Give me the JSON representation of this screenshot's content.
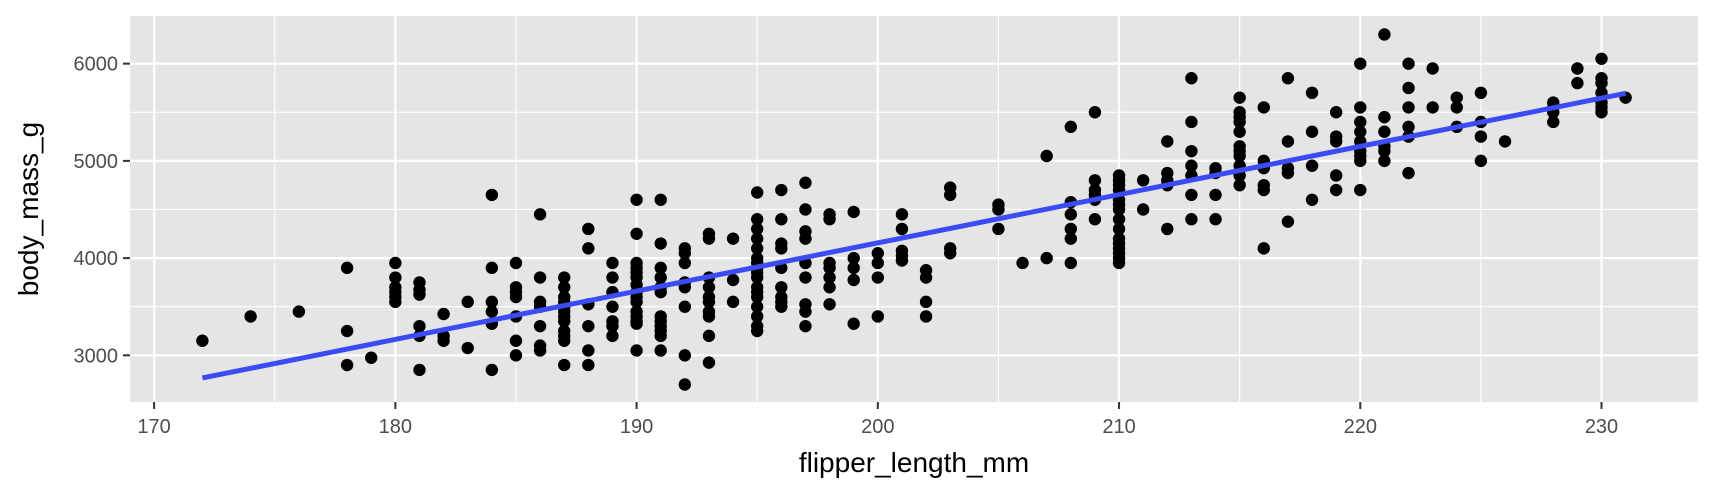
{
  "chart_data": {
    "type": "scatter",
    "title": "",
    "xlabel": "flipper_length_mm",
    "ylabel": "body_mass_g",
    "xlim": [
      169,
      234
    ],
    "ylim": [
      2520,
      6490
    ],
    "x_ticks": [
      170,
      180,
      190,
      200,
      210,
      220,
      230
    ],
    "y_ticks": [
      3000,
      4000,
      5000,
      6000
    ],
    "grid": true,
    "legend": "none",
    "colors": {
      "panel_background": "#e5e5e5",
      "grid_line": "#ffffff",
      "points": "#000000",
      "fit_line": "#3b4cf5",
      "tick_label": "#4d4d4d",
      "axis_title": "#000000"
    },
    "series": [
      {
        "type": "scatter",
        "points": [
          [
            172,
            3150
          ],
          [
            174,
            3400
          ],
          [
            176,
            3450
          ],
          [
            178,
            3250
          ],
          [
            178,
            3900
          ],
          [
            178,
            2900
          ],
          [
            179,
            2975
          ],
          [
            180,
            3950
          ],
          [
            180,
            3800
          ],
          [
            180,
            3700
          ],
          [
            180,
            3650
          ],
          [
            180,
            3600
          ],
          [
            180,
            3550
          ],
          [
            181,
            3750
          ],
          [
            181,
            3675
          ],
          [
            181,
            3625
          ],
          [
            181,
            3300
          ],
          [
            181,
            3200
          ],
          [
            181,
            2850
          ],
          [
            182,
            3425
          ],
          [
            182,
            3200
          ],
          [
            182,
            3150
          ],
          [
            183,
            3550
          ],
          [
            183,
            3075
          ],
          [
            184,
            4650
          ],
          [
            184,
            3900
          ],
          [
            184,
            3550
          ],
          [
            184,
            3450
          ],
          [
            184,
            3325
          ],
          [
            184,
            2850
          ],
          [
            185,
            3950
          ],
          [
            185,
            3700
          ],
          [
            185,
            3650
          ],
          [
            185,
            3600
          ],
          [
            185,
            3400
          ],
          [
            185,
            3150
          ],
          [
            185,
            3000
          ],
          [
            186,
            4450
          ],
          [
            186,
            3800
          ],
          [
            186,
            3550
          ],
          [
            186,
            3500
          ],
          [
            186,
            3300
          ],
          [
            186,
            3100
          ],
          [
            186,
            3050
          ],
          [
            187,
            3800
          ],
          [
            187,
            3700
          ],
          [
            187,
            3600
          ],
          [
            187,
            3550
          ],
          [
            187,
            3500
          ],
          [
            187,
            3450
          ],
          [
            187,
            3400
          ],
          [
            187,
            3350
          ],
          [
            187,
            3250
          ],
          [
            187,
            3200
          ],
          [
            187,
            3150
          ],
          [
            187,
            2900
          ],
          [
            188,
            4300
          ],
          [
            188,
            4100
          ],
          [
            188,
            3525
          ],
          [
            188,
            3300
          ],
          [
            188,
            3050
          ],
          [
            188,
            2900
          ],
          [
            189,
            3950
          ],
          [
            189,
            3800
          ],
          [
            189,
            3650
          ],
          [
            189,
            3500
          ],
          [
            189,
            3350
          ],
          [
            189,
            3300
          ],
          [
            189,
            3200
          ],
          [
            190,
            4600
          ],
          [
            190,
            4250
          ],
          [
            190,
            3950
          ],
          [
            190,
            3900
          ],
          [
            190,
            3850
          ],
          [
            190,
            3800
          ],
          [
            190,
            3725
          ],
          [
            190,
            3650
          ],
          [
            190,
            3600
          ],
          [
            190,
            3550
          ],
          [
            190,
            3450
          ],
          [
            190,
            3400
          ],
          [
            190,
            3350
          ],
          [
            190,
            3325
          ],
          [
            190,
            3050
          ],
          [
            191,
            4600
          ],
          [
            191,
            4150
          ],
          [
            191,
            3900
          ],
          [
            191,
            3800
          ],
          [
            191,
            3700
          ],
          [
            191,
            3650
          ],
          [
            191,
            3400
          ],
          [
            191,
            3350
          ],
          [
            191,
            3300
          ],
          [
            191,
            3250
          ],
          [
            191,
            3200
          ],
          [
            191,
            3050
          ],
          [
            192,
            4100
          ],
          [
            192,
            4050
          ],
          [
            192,
            3950
          ],
          [
            192,
            3750
          ],
          [
            192,
            3700
          ],
          [
            192,
            3500
          ],
          [
            192,
            3000
          ],
          [
            192,
            2700
          ],
          [
            193,
            4250
          ],
          [
            193,
            4200
          ],
          [
            193,
            3800
          ],
          [
            193,
            3700
          ],
          [
            193,
            3600
          ],
          [
            193,
            3550
          ],
          [
            193,
            3450
          ],
          [
            193,
            3400
          ],
          [
            193,
            3200
          ],
          [
            193,
            2925
          ],
          [
            194,
            4200
          ],
          [
            194,
            3775
          ],
          [
            194,
            3550
          ],
          [
            195,
            4675
          ],
          [
            195,
            4400
          ],
          [
            195,
            4300
          ],
          [
            195,
            4200
          ],
          [
            195,
            4100
          ],
          [
            195,
            4000
          ],
          [
            195,
            3950
          ],
          [
            195,
            3900
          ],
          [
            195,
            3850
          ],
          [
            195,
            3800
          ],
          [
            195,
            3700
          ],
          [
            195,
            3650
          ],
          [
            195,
            3600
          ],
          [
            195,
            3500
          ],
          [
            195,
            3400
          ],
          [
            195,
            3300
          ],
          [
            195,
            3250
          ],
          [
            196,
            4700
          ],
          [
            196,
            4400
          ],
          [
            196,
            4150
          ],
          [
            196,
            4100
          ],
          [
            196,
            3900
          ],
          [
            196,
            3700
          ],
          [
            196,
            3600
          ],
          [
            196,
            3550
          ],
          [
            196,
            3500
          ],
          [
            197,
            4775
          ],
          [
            197,
            4500
          ],
          [
            197,
            4275
          ],
          [
            197,
            4200
          ],
          [
            197,
            3950
          ],
          [
            197,
            3800
          ],
          [
            197,
            3525
          ],
          [
            197,
            3450
          ],
          [
            197,
            3300
          ],
          [
            198,
            4450
          ],
          [
            198,
            4400
          ],
          [
            198,
            3950
          ],
          [
            198,
            3900
          ],
          [
            198,
            3800
          ],
          [
            198,
            3700
          ],
          [
            198,
            3525
          ],
          [
            199,
            4475
          ],
          [
            199,
            4000
          ],
          [
            199,
            3900
          ],
          [
            199,
            3775
          ],
          [
            199,
            3325
          ],
          [
            200,
            4050
          ],
          [
            200,
            3950
          ],
          [
            200,
            3800
          ],
          [
            200,
            3400
          ],
          [
            201,
            4450
          ],
          [
            201,
            4300
          ],
          [
            201,
            4075
          ],
          [
            201,
            4025
          ],
          [
            201,
            3975
          ],
          [
            202,
            3875
          ],
          [
            202,
            3800
          ],
          [
            202,
            3550
          ],
          [
            202,
            3400
          ],
          [
            203,
            4725
          ],
          [
            203,
            4650
          ],
          [
            203,
            4100
          ],
          [
            203,
            4050
          ],
          [
            205,
            4550
          ],
          [
            205,
            4500
          ],
          [
            205,
            4300
          ],
          [
            206,
            3950
          ],
          [
            207,
            5050
          ],
          [
            207,
            4000
          ],
          [
            208,
            5350
          ],
          [
            208,
            4575
          ],
          [
            208,
            4450
          ],
          [
            208,
            4300
          ],
          [
            208,
            4200
          ],
          [
            208,
            3950
          ],
          [
            209,
            5500
          ],
          [
            209,
            4800
          ],
          [
            209,
            4700
          ],
          [
            209,
            4650
          ],
          [
            209,
            4600
          ],
          [
            209,
            4400
          ],
          [
            210,
            4850
          ],
          [
            210,
            4800
          ],
          [
            210,
            4750
          ],
          [
            210,
            4700
          ],
          [
            210,
            4600
          ],
          [
            210,
            4550
          ],
          [
            210,
            4500
          ],
          [
            210,
            4400
          ],
          [
            210,
            4300
          ],
          [
            210,
            4200
          ],
          [
            210,
            4150
          ],
          [
            210,
            4100
          ],
          [
            210,
            4050
          ],
          [
            210,
            4000
          ],
          [
            210,
            3950
          ],
          [
            211,
            4800
          ],
          [
            211,
            4500
          ],
          [
            212,
            5200
          ],
          [
            212,
            4875
          ],
          [
            212,
            4800
          ],
          [
            212,
            4750
          ],
          [
            212,
            4300
          ],
          [
            213,
            5850
          ],
          [
            213,
            5400
          ],
          [
            213,
            5100
          ],
          [
            213,
            4950
          ],
          [
            213,
            4850
          ],
          [
            213,
            4650
          ],
          [
            213,
            4400
          ],
          [
            214,
            4925
          ],
          [
            214,
            4875
          ],
          [
            214,
            4650
          ],
          [
            214,
            4400
          ],
          [
            215,
            5650
          ],
          [
            215,
            5500
          ],
          [
            215,
            5450
          ],
          [
            215,
            5400
          ],
          [
            215,
            5300
          ],
          [
            215,
            5150
          ],
          [
            215,
            5100
          ],
          [
            215,
            5050
          ],
          [
            215,
            4950
          ],
          [
            215,
            4850
          ],
          [
            215,
            4750
          ],
          [
            216,
            5550
          ],
          [
            216,
            5000
          ],
          [
            216,
            4925
          ],
          [
            216,
            4750
          ],
          [
            216,
            4700
          ],
          [
            216,
            4100
          ],
          [
            217,
            5850
          ],
          [
            217,
            5200
          ],
          [
            217,
            4925
          ],
          [
            217,
            4875
          ],
          [
            217,
            4375
          ],
          [
            218,
            5700
          ],
          [
            218,
            5300
          ],
          [
            218,
            4950
          ],
          [
            218,
            4600
          ],
          [
            219,
            5500
          ],
          [
            219,
            5250
          ],
          [
            219,
            5200
          ],
          [
            219,
            4850
          ],
          [
            219,
            4700
          ],
          [
            220,
            6000
          ],
          [
            220,
            5550
          ],
          [
            220,
            5400
          ],
          [
            220,
            5300
          ],
          [
            220,
            5200
          ],
          [
            220,
            5100
          ],
          [
            220,
            5050
          ],
          [
            220,
            5000
          ],
          [
            220,
            4700
          ],
          [
            221,
            6300
          ],
          [
            221,
            5450
          ],
          [
            221,
            5300
          ],
          [
            221,
            5150
          ],
          [
            221,
            5100
          ],
          [
            221,
            5000
          ],
          [
            222,
            6000
          ],
          [
            222,
            5750
          ],
          [
            222,
            5550
          ],
          [
            222,
            5350
          ],
          [
            222,
            5250
          ],
          [
            222,
            4875
          ],
          [
            223,
            5950
          ],
          [
            223,
            5550
          ],
          [
            224,
            5650
          ],
          [
            224,
            5550
          ],
          [
            224,
            5350
          ],
          [
            225,
            5700
          ],
          [
            225,
            5400
          ],
          [
            225,
            5250
          ],
          [
            225,
            5000
          ],
          [
            226,
            5200
          ],
          [
            228,
            5600
          ],
          [
            228,
            5550
          ],
          [
            228,
            5500
          ],
          [
            228,
            5400
          ],
          [
            229,
            5950
          ],
          [
            229,
            5800
          ],
          [
            230,
            6050
          ],
          [
            230,
            5850
          ],
          [
            230,
            5800
          ],
          [
            230,
            5700
          ],
          [
            230,
            5600
          ],
          [
            230,
            5550
          ],
          [
            230,
            5500
          ],
          [
            231,
            5650
          ]
        ]
      },
      {
        "type": "line",
        "method": "linear fit",
        "points": [
          [
            172,
            2767
          ],
          [
            231,
            5695
          ]
        ]
      }
    ]
  }
}
